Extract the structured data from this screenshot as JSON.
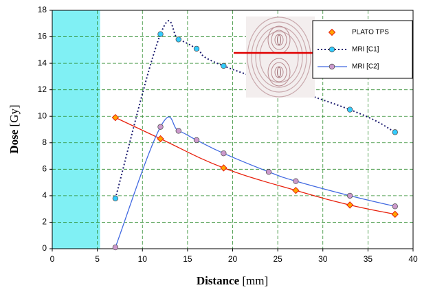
{
  "chart_data": {
    "type": "line",
    "ylabel": "Dose",
    "yunit": "[Gy]",
    "xlabel": "Distance",
    "xunit": "[mm]",
    "xlim": [
      0,
      40
    ],
    "xticks": [
      0,
      5,
      10,
      15,
      20,
      25,
      30,
      35,
      40
    ],
    "ylim": [
      0,
      18
    ],
    "yticks": [
      0,
      2,
      4,
      6,
      8,
      10,
      12,
      14,
      16,
      18
    ],
    "grid": true,
    "legend": "upper right",
    "shaded_xrange": [
      0,
      5.3
    ],
    "shaded_color": "#80f0f4",
    "series": [
      {
        "name": "PLATO TPS",
        "color": "#e8200c",
        "marker_color": "#ffa500",
        "marker": "diamond",
        "dash": "solid",
        "x": [
          7,
          12,
          19,
          27,
          33,
          38
        ],
        "values": [
          9.9,
          8.3,
          6.1,
          4.4,
          3.3,
          2.6
        ]
      },
      {
        "name": "MRI [C1]",
        "color": "#1a1a6e",
        "marker_color": "#33ccff",
        "marker": "circle",
        "dash": "dotted",
        "x": [
          7,
          12,
          14,
          16,
          19,
          33,
          38
        ],
        "values": [
          3.8,
          16.2,
          15.8,
          15.1,
          13.8,
          10.5,
          8.8
        ]
      },
      {
        "name": "MRI [C2]",
        "color": "#4169e1",
        "marker_color": "#cc99cc",
        "marker": "circle",
        "dash": "solid",
        "x": [
          7,
          12,
          14,
          16,
          19,
          24,
          27,
          33,
          38
        ],
        "values": [
          0.1,
          9.2,
          8.9,
          8.2,
          7.2,
          5.8,
          5.1,
          4.0,
          3.2
        ]
      }
    ]
  }
}
